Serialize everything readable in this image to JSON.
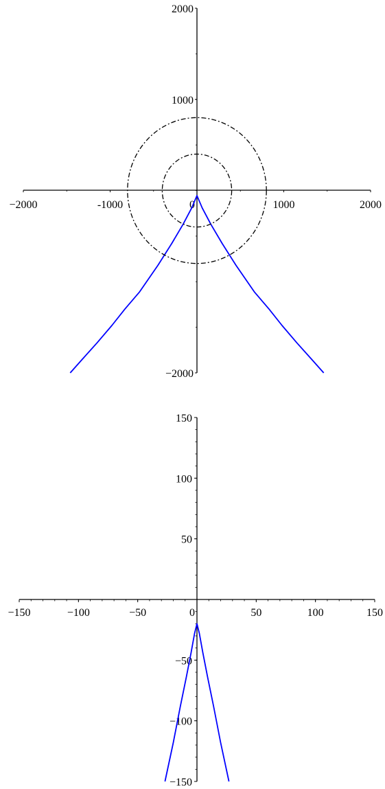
{
  "chart_data": [
    {
      "type": "line",
      "title": "",
      "xlabel": "",
      "ylabel": "",
      "xlim": [
        -2000,
        2000
      ],
      "ylim": [
        -2000,
        2000
      ],
      "grid": false,
      "xticks": [
        -2000,
        -1000,
        0,
        1000,
        2000
      ],
      "xtick_labels": [
        "−2000",
        "-1000",
        "0",
        "1000",
        "2000"
      ],
      "yticks": [
        -2000,
        1000,
        2000
      ],
      "ytick_labels": [
        "−2000",
        "1000",
        "2000"
      ],
      "axis_color": "#000000",
      "series": [
        {
          "kind": "curve",
          "style": "solid",
          "color": "#0000ff",
          "x": [
            -1460,
            -1320,
            -1150,
            -980,
            -830,
            -660,
            -450,
            -290,
            -160,
            -60,
            0,
            60,
            160,
            290,
            450,
            660,
            830,
            980,
            1150,
            1320,
            1460
          ],
          "y": [
            -2000,
            -1850,
            -1670,
            -1480,
            -1300,
            -1110,
            -820,
            -580,
            -370,
            -190,
            -55,
            -190,
            -370,
            -580,
            -820,
            -1110,
            -1300,
            -1480,
            -1670,
            -1850,
            -2000
          ]
        },
        {
          "kind": "circle",
          "style": "dashdot",
          "color": "#000000",
          "center": [
            0,
            0
          ],
          "radius": 800
        },
        {
          "kind": "circle",
          "style": "dashdot",
          "color": "#000000",
          "center": [
            0,
            0
          ],
          "radius": 400
        }
      ]
    },
    {
      "type": "line",
      "title": "",
      "xlabel": "",
      "ylabel": "",
      "xlim": [
        -150,
        150
      ],
      "ylim": [
        -150,
        150
      ],
      "grid": false,
      "xticks": [
        -150,
        -100,
        -50,
        0,
        50,
        100,
        150
      ],
      "xtick_labels": [
        "−150",
        "−100",
        "−50",
        "0",
        "50",
        "100",
        "150"
      ],
      "yticks": [
        -150,
        -100,
        -50,
        50,
        100,
        150
      ],
      "ytick_labels": [
        "−150",
        "−100",
        "−50",
        "50",
        "100",
        "150"
      ],
      "axis_color": "#000000",
      "series": [
        {
          "kind": "curve",
          "style": "solid",
          "color": "#0000ff",
          "x": [
            -27,
            -20,
            -14,
            -9,
            -5,
            -2,
            0,
            2,
            5,
            9,
            14,
            20,
            27
          ],
          "y": [
            -150,
            -118,
            -88,
            -64,
            -44,
            -28,
            -20,
            -28,
            -44,
            -64,
            -88,
            -118,
            -150
          ]
        }
      ]
    }
  ]
}
